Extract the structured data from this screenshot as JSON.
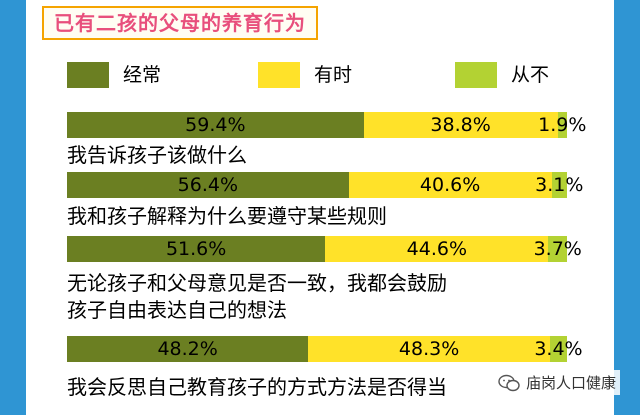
{
  "title": "已有二孩的父母的养育行为",
  "colors": {
    "often": "#6b7f22",
    "sometimes": "#ffe229",
    "never": "#b3d233"
  },
  "legend": [
    "经常",
    "有时",
    "从不"
  ],
  "rows": [
    {
      "label": [
        "我告诉孩子该做什么"
      ],
      "values": [
        "59.4%",
        "38.8%",
        "1.9%"
      ]
    },
    {
      "label": [
        "我和孩子解释为什么要遵守某些规则"
      ],
      "values": [
        "56.4%",
        "40.6%",
        "3.1%"
      ]
    },
    {
      "label": [
        "无论孩子和父母意见是否一致，我都会鼓励",
        "孩子自由表达自己的想法"
      ],
      "values": [
        "51.6%",
        "44.6%",
        "3.7%"
      ]
    },
    {
      "label": [
        "我会反思自己教育孩子的方式方法是否得当"
      ],
      "values": [
        "48.2%",
        "48.3%",
        "3.4%"
      ]
    }
  ],
  "chart_data": {
    "type": "bar",
    "stacked": true,
    "orientation": "horizontal",
    "title": "已有二孩的父母的养育行为",
    "categories": [
      "我告诉孩子该做什么",
      "我和孩子解释为什么要遵守某些规则",
      "无论孩子和父母意见是否一致，我都会鼓励孩子自由表达自己的想法",
      "我会反思自己教育孩子的方式方法是否得当"
    ],
    "series": [
      {
        "name": "经常",
        "values": [
          59.4,
          56.4,
          51.6,
          48.2
        ]
      },
      {
        "name": "有时",
        "values": [
          38.8,
          40.6,
          44.6,
          48.3
        ]
      },
      {
        "name": "从不",
        "values": [
          1.9,
          3.1,
          3.7,
          3.4
        ]
      }
    ],
    "legend_position": "top"
  },
  "watermark": "庙岗人口健康"
}
